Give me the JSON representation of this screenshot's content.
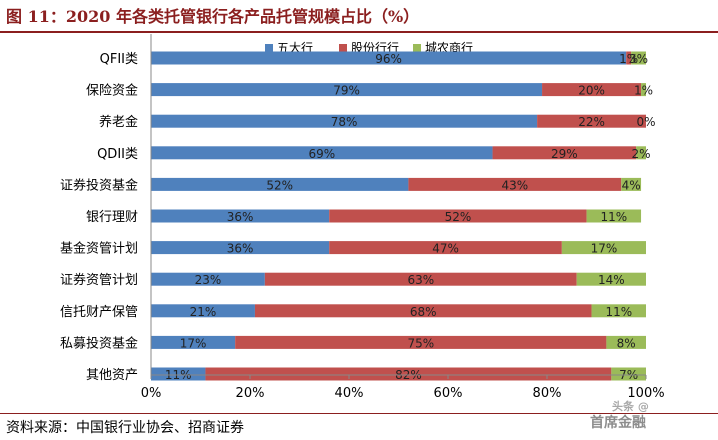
{
  "title": "图 11：2020 年各类托管银行各产品托管规模占比（%）",
  "source": "资料来源：中国银行业协会、招商证券",
  "watermark": {
    "line1": "头条 @",
    "line2": "首席金融"
  },
  "colors": {
    "five_big": "#4f81bd",
    "joint_stock": "#c0504d",
    "city_commercial": "#9bbb59",
    "title": "#8b1f1f"
  },
  "chart_data": {
    "type": "bar",
    "orientation": "horizontal",
    "stacked": true,
    "title": "",
    "xlabel": "",
    "ylabel": "",
    "xlim": [
      0,
      100
    ],
    "xticks": [
      "0%",
      "20%",
      "40%",
      "60%",
      "80%",
      "100%"
    ],
    "legend_position": "top",
    "grid": false,
    "categories": [
      "QFII类",
      "保险资金",
      "养老金",
      "QDII类",
      "证券投资基金",
      "银行理财",
      "基金资管计划",
      "证券资管计划",
      "信托财产保管",
      "私募投资基金",
      "其他资产"
    ],
    "series": [
      {
        "name": "五大行",
        "color": "#4f81bd",
        "values": [
          96,
          79,
          78,
          69,
          52,
          36,
          36,
          23,
          21,
          17,
          11
        ],
        "labels": [
          "96%",
          "79%",
          "78%",
          "69%",
          "52%",
          "36%",
          "36%",
          "23%",
          "21%",
          "17%",
          "11%"
        ]
      },
      {
        "name": "股份行行",
        "color": "#c0504d",
        "values": [
          1,
          20,
          22,
          29,
          43,
          52,
          47,
          63,
          68,
          75,
          82
        ],
        "labels": [
          "1%",
          "20%",
          "22%",
          "29%",
          "43%",
          "52%",
          "47%",
          "63%",
          "68%",
          "75%",
          "82%"
        ]
      },
      {
        "name": "城农商行",
        "color": "#9bbb59",
        "values": [
          3,
          1,
          0,
          2,
          4,
          11,
          17,
          14,
          11,
          8,
          7
        ],
        "labels": [
          "3%",
          "1%",
          "0%",
          "2%",
          "4%",
          "11%",
          "17%",
          "14%",
          "11%",
          "8%",
          "7%"
        ]
      }
    ]
  }
}
